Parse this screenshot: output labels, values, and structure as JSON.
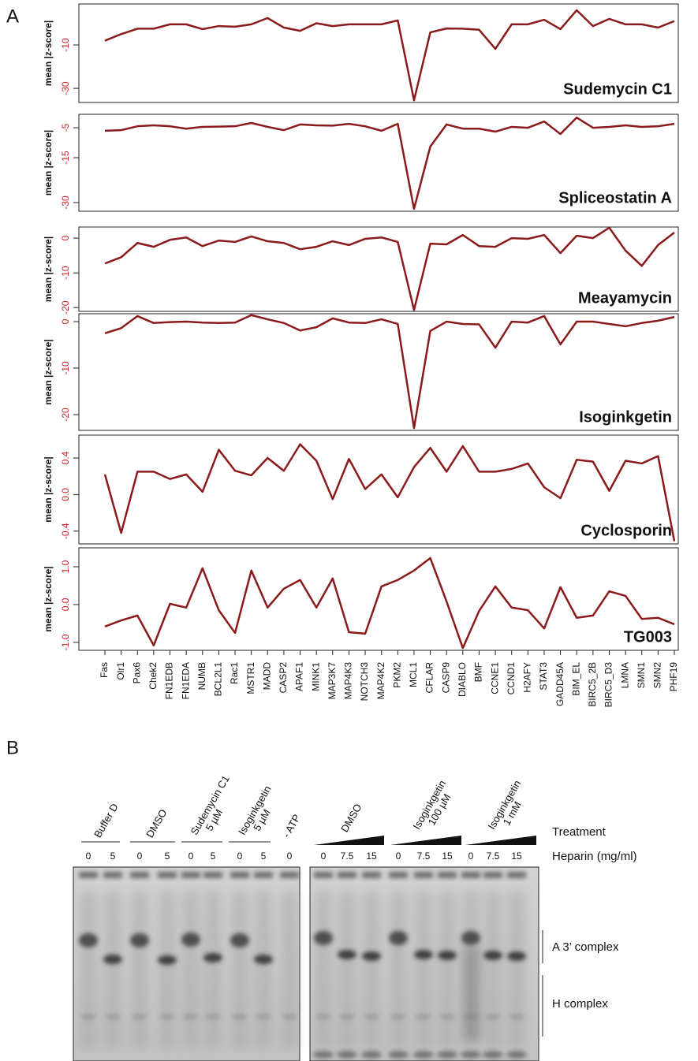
{
  "panel_labels": {
    "a": "A",
    "b": "B"
  },
  "chart_data": [
    {
      "type": "line",
      "title": "Sudemycin C1",
      "y_label": "mean |z-score|",
      "color": "#8b1a1a",
      "tick_color": "#cc2222",
      "ylim": [
        -36.5,
        8.9
      ],
      "yticks": [
        -30,
        -10
      ],
      "values": [
        -8,
        -5,
        -2.5,
        -2.5,
        -0.5,
        -0.5,
        -2.7,
        -1.3,
        -1.6,
        -0.5,
        2.4,
        -2,
        -3.5,
        0,
        -1.3,
        -0.5,
        -0.5,
        -0.5,
        1.3,
        -35.5,
        -4.2,
        -2.4,
        -2.5,
        -3,
        -11.8,
        -0.5,
        -0.5,
        1.6,
        -2.7,
        6,
        -1.3,
        2,
        -0.5,
        -0.5,
        -2,
        1
      ]
    },
    {
      "type": "line",
      "title": "Spliceostatin A",
      "y_label": "mean |z-score|",
      "color": "#8b1a1a",
      "tick_color": "#cc2222",
      "ylim": [
        -32.9,
        -0.5
      ],
      "yticks": [
        -30,
        -15,
        -5
      ],
      "values": [
        -6,
        -5.8,
        -4.5,
        -4.2,
        -4.5,
        -5.3,
        -4.7,
        -4.6,
        -4.5,
        -3.4,
        -4.7,
        -5.8,
        -3.9,
        -4.2,
        -4.3,
        -3.7,
        -4.5,
        -6,
        -3.7,
        -32.1,
        -11.3,
        -3.9,
        -5.3,
        -5.3,
        -6.3,
        -4.7,
        -5,
        -2.9,
        -7.1,
        -1.6,
        -5,
        -4.7,
        -4.2,
        -4.7,
        -4.5,
        -3.7
      ]
    },
    {
      "type": "line",
      "title": "Meayamycin",
      "y_label": "mean |z-score|",
      "color": "#8b1a1a",
      "tick_color": "#cc2222",
      "ylim": [
        -21.1,
        3.2
      ],
      "yticks": [
        -20,
        -10,
        0
      ],
      "values": [
        -7.3,
        -5.5,
        -1.4,
        -2.5,
        -0.5,
        0.2,
        -2.3,
        -0.7,
        -1.1,
        0.5,
        -0.9,
        -1.4,
        -3.2,
        -2.5,
        -0.9,
        -2,
        -0.2,
        0.2,
        -1.1,
        -20.7,
        -1.6,
        -1.8,
        0.9,
        -2.3,
        -2.5,
        0,
        -0.2,
        0.9,
        -4.3,
        0.7,
        0,
        3,
        -3.6,
        -8,
        -2,
        1.6
      ]
    },
    {
      "type": "line",
      "title": "Isoginkgetin",
      "y_label": "mean |z-score|",
      "color": "#8b1a1a",
      "tick_color": "#cc2222",
      "ylim": [
        -23.4,
        1.7
      ],
      "yticks": [
        -20,
        -10,
        0
      ],
      "values": [
        -2.5,
        -1.4,
        1.2,
        -0.3,
        -0.1,
        0,
        -0.2,
        -0.3,
        -0.2,
        1.4,
        0.5,
        -0.3,
        -1.9,
        -1.2,
        0.7,
        -0.2,
        -0.3,
        0.5,
        -0.5,
        -22.9,
        -2,
        0,
        -0.5,
        -0.6,
        -5.6,
        0,
        -0.2,
        1.2,
        -4.9,
        0,
        0,
        -0.5,
        -1,
        -0.3,
        0.2,
        1
      ]
    },
    {
      "type": "line",
      "title": "Cyclosporin",
      "y_label": "mean |z-score|",
      "color": "#8b1a1a",
      "tick_color": "#cc2222",
      "ylim": [
        -0.54,
        0.65
      ],
      "yticks": [
        -0.4,
        {
          "value": 0,
          "label": "0.0"
        },
        0.4
      ],
      "values": [
        0.22,
        -0.42,
        0.25,
        0.25,
        0.17,
        0.22,
        0.03,
        0.49,
        0.26,
        0.21,
        0.4,
        0.26,
        0.55,
        0.37,
        -0.05,
        0.39,
        0.06,
        0.22,
        -0.03,
        0.3,
        0.51,
        0.25,
        0.53,
        0.25,
        0.25,
        0.28,
        0.34,
        0.08,
        -0.04,
        0.38,
        0.36,
        0.04,
        0.37,
        0.34,
        0.42,
        -0.51
      ]
    },
    {
      "type": "line",
      "title": "TG003",
      "y_label": "mean |z-score|",
      "color": "#8b1a1a",
      "tick_color": "#cc2222",
      "ylim": [
        -1.21,
        1.5
      ],
      "yticks": [
        {
          "value": -1,
          "label": "-1.0"
        },
        {
          "value": 0,
          "label": "0.0"
        },
        {
          "value": 1,
          "label": "1.0"
        }
      ],
      "categories": [
        "Fas",
        "Olr1",
        "Pax6",
        "Chek2",
        "FN1EDB",
        "FN1EDA",
        "NUMB",
        "BCL2L1",
        "Rac1",
        "MSTR1",
        "MADD",
        "CASP2",
        "APAF1",
        "MINK1",
        "MAP3K7",
        "MAP4K3",
        "NOTCH3",
        "MAP4K2",
        "PKM2",
        "MCL1",
        "CFLAR",
        "CASP9",
        "DIABLO",
        "BMF",
        "CCNE1",
        "CCND1",
        "H2AFY",
        "STAT3",
        "GADD45A",
        "BIM_EL",
        "BIRC5_2B",
        "BIRC5_D3",
        "LMNA",
        "SMN1",
        "SMN2",
        "PHF19"
      ],
      "values": [
        -0.58,
        -0.42,
        -0.29,
        -1.08,
        0.02,
        -0.08,
        0.96,
        -0.15,
        -0.75,
        0.9,
        -0.08,
        0.42,
        0.65,
        -0.08,
        0.69,
        -0.73,
        -0.77,
        0.48,
        0.65,
        0.9,
        1.23,
        0.08,
        -1.15,
        -0.17,
        0.48,
        -0.08,
        -0.15,
        -0.63,
        0.46,
        -0.35,
        -0.29,
        0.35,
        0.23,
        -0.38,
        -0.35,
        -0.52
      ]
    }
  ],
  "gel": {
    "treatment_label": "Treatment",
    "heparin_label": "Heparin (mg/ml)",
    "left": {
      "treatments": [
        [
          "Buffer D"
        ],
        [
          "DMSO"
        ],
        [
          "Sudemycin C1",
          "5 µM"
        ],
        [
          "Isoginkgetin",
          "5 µM"
        ],
        [
          "- ATP"
        ]
      ],
      "heparin": [
        "0",
        "5",
        "0",
        "5",
        "0",
        "5",
        "0",
        "5",
        "0"
      ]
    },
    "right": {
      "treatments": [
        [
          "DMSO"
        ],
        [
          "Isoginkgetin",
          "100 µM"
        ],
        [
          "Isoginkgetin",
          "1 mM"
        ]
      ],
      "heparin": [
        "0",
        "7.5",
        "15",
        "0",
        "7.5",
        "15",
        "0",
        "7.5",
        "15"
      ]
    },
    "complexes": [
      "A 3’ complex",
      "H complex"
    ]
  }
}
